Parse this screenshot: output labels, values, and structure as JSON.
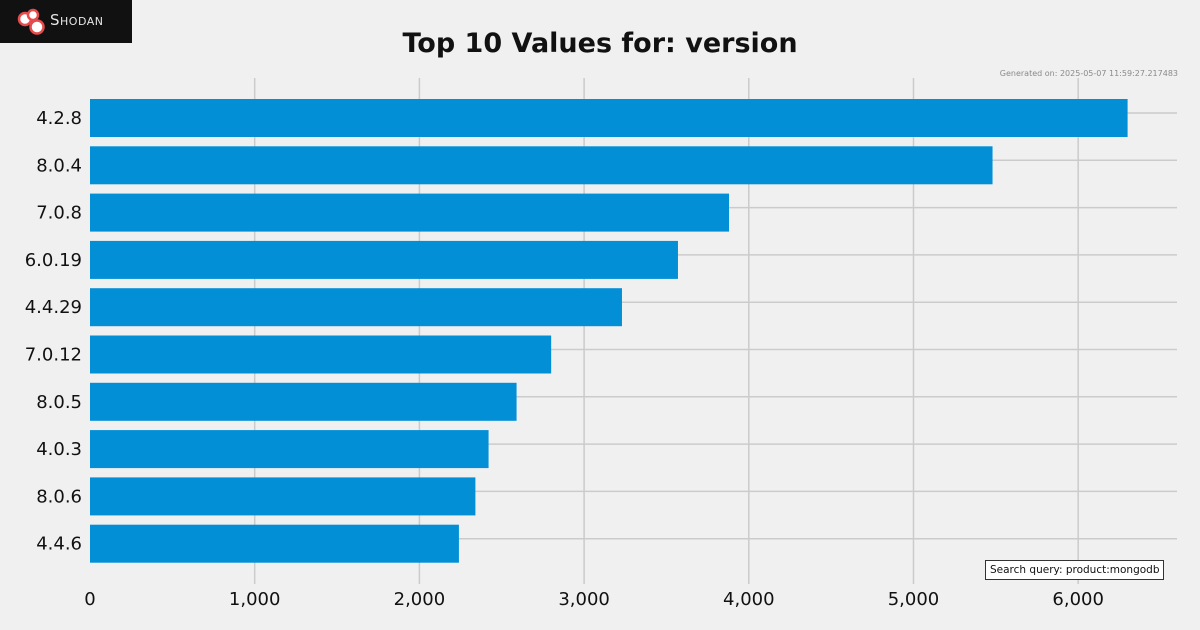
{
  "brand": {
    "name": "Shodan",
    "logo_bg": "#111111",
    "logo_accent": "#e74c4c"
  },
  "header": {
    "generated": "Generated on: 2025-05-07 11:59:27.217483"
  },
  "footer": {
    "query": "Search query: product:mongodb"
  },
  "chart_data": {
    "type": "bar",
    "orientation": "horizontal",
    "title": "Top 10 Values for: version",
    "xlabel": "",
    "ylabel": "",
    "categories": [
      "4.2.8",
      "8.0.4",
      "7.0.8",
      "6.0.19",
      "4.4.29",
      "7.0.12",
      "8.0.5",
      "4.0.3",
      "8.0.6",
      "4.4.6"
    ],
    "values": [
      6300,
      5480,
      3880,
      3570,
      3230,
      2800,
      2590,
      2420,
      2340,
      2240
    ],
    "xlim": [
      0,
      6600
    ],
    "xticks": [
      0,
      1000,
      2000,
      3000,
      4000,
      5000,
      6000
    ],
    "xtick_labels": [
      "0",
      "1,000",
      "2,000",
      "3,000",
      "4,000",
      "5,000",
      "6,000"
    ],
    "grid": true,
    "bar_color": "#028fd6",
    "grid_color": "#cbcbcb",
    "background": "#f0f0f0"
  }
}
